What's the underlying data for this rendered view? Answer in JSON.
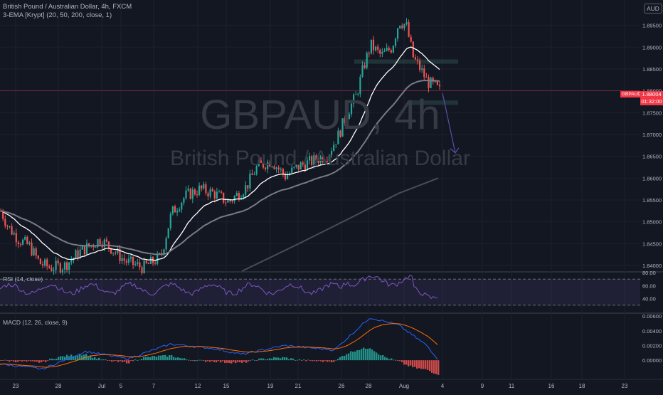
{
  "header": {
    "title": "British Pound / Australian Dollar, 4h, FXCM",
    "indicator": "3-EMA [Krypt] (20, 50, 200, close, 1)",
    "currency_badge": "AUD"
  },
  "watermark": {
    "symbol": "GBPAUD, 4h",
    "name": "British Pound / Australian Dollar"
  },
  "current_price": {
    "symbol": "GBPAUD",
    "price": "1.88004",
    "countdown": "01:32:00",
    "color": "#f23645"
  },
  "rsi_panel": {
    "legend": "RSI (14, close)"
  },
  "macd_panel": {
    "legend": "MACD (12, 26, close, 9)"
  },
  "colors": {
    "background": "#131722",
    "up": "#26a69a",
    "down": "#ef5350",
    "ema_fast": "#ffffff",
    "ema_mid": "#787b86",
    "ema_slow": "#4a4c55",
    "rsi_line": "#7e57c2",
    "macd_line": "#2962ff",
    "signal_line": "#ff6d00"
  },
  "chart_data": {
    "type": "candlestick",
    "symbol": "GBPAUD",
    "timeframe": "4h",
    "x_tick_labels": [
      "23",
      "28",
      "Jul",
      "5",
      "7",
      "12",
      "15",
      "19",
      "21",
      "26",
      "28",
      "Aug",
      "4",
      "9",
      "11",
      "16",
      "18",
      "23"
    ],
    "price_axis": {
      "ticks": [
        "1.89500",
        "1.89000",
        "1.88500",
        "1.88000",
        "1.87500",
        "1.87000",
        "1.86500",
        "1.86000",
        "1.85500",
        "1.85000",
        "1.84500",
        "1.84000"
      ],
      "range": [
        1.8387,
        1.8995
      ]
    },
    "ema_periods": [
      20,
      50,
      200
    ],
    "zones": [
      {
        "from": 1.8862,
        "to": 1.8872
      },
      {
        "from": 1.8768,
        "to": 1.8778
      }
    ],
    "projection": {
      "from": 1.8795,
      "to": 1.8658
    },
    "rsi": {
      "ticks": [
        "80.00",
        "60.00",
        "40.00"
      ],
      "range": [
        20,
        80
      ],
      "bands": [
        70,
        30
      ]
    },
    "macd": {
      "ticks": [
        "0.00600",
        "0.00400",
        "0.00200",
        "0.00000"
      ],
      "range": [
        -0.0025,
        0.0063
      ]
    }
  }
}
